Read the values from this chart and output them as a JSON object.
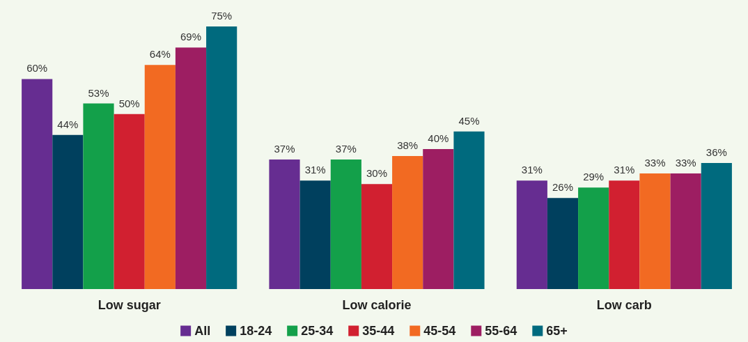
{
  "chart_data": {
    "type": "bar",
    "categories": [
      "Low sugar",
      "Low calorie",
      "Low carb"
    ],
    "series": [
      {
        "name": "All",
        "color": "#662d91",
        "values": [
          60,
          37,
          31
        ],
        "value_labels": [
          "60%",
          "37%",
          "31%"
        ]
      },
      {
        "name": "18-24",
        "color": "#00405e",
        "values": [
          44,
          31,
          26
        ],
        "value_labels": [
          "44%",
          "31%",
          "26%"
        ]
      },
      {
        "name": "25-34",
        "color": "#13a04a",
        "values": [
          53,
          37,
          29
        ],
        "value_labels": [
          "53%",
          "37%",
          "29%"
        ]
      },
      {
        "name": "35-44",
        "color": "#d12030",
        "values": [
          50,
          30,
          31
        ],
        "value_labels": [
          "50%",
          "30%",
          "31%"
        ]
      },
      {
        "name": "45-54",
        "color": "#f26a22",
        "values": [
          64,
          38,
          33
        ],
        "value_labels": [
          "64%",
          "38%",
          "33%"
        ]
      },
      {
        "name": "55-64",
        "color": "#9d1e62",
        "values": [
          69,
          40,
          33
        ],
        "value_labels": [
          "69%",
          "40%",
          "33%"
        ]
      },
      {
        "name": "65+",
        "color": "#006a7e",
        "values": [
          75,
          45,
          36
        ],
        "value_labels": [
          "75%",
          "45%",
          "36%"
        ]
      }
    ],
    "legend": "bottom",
    "tick_labels": "x"
  }
}
